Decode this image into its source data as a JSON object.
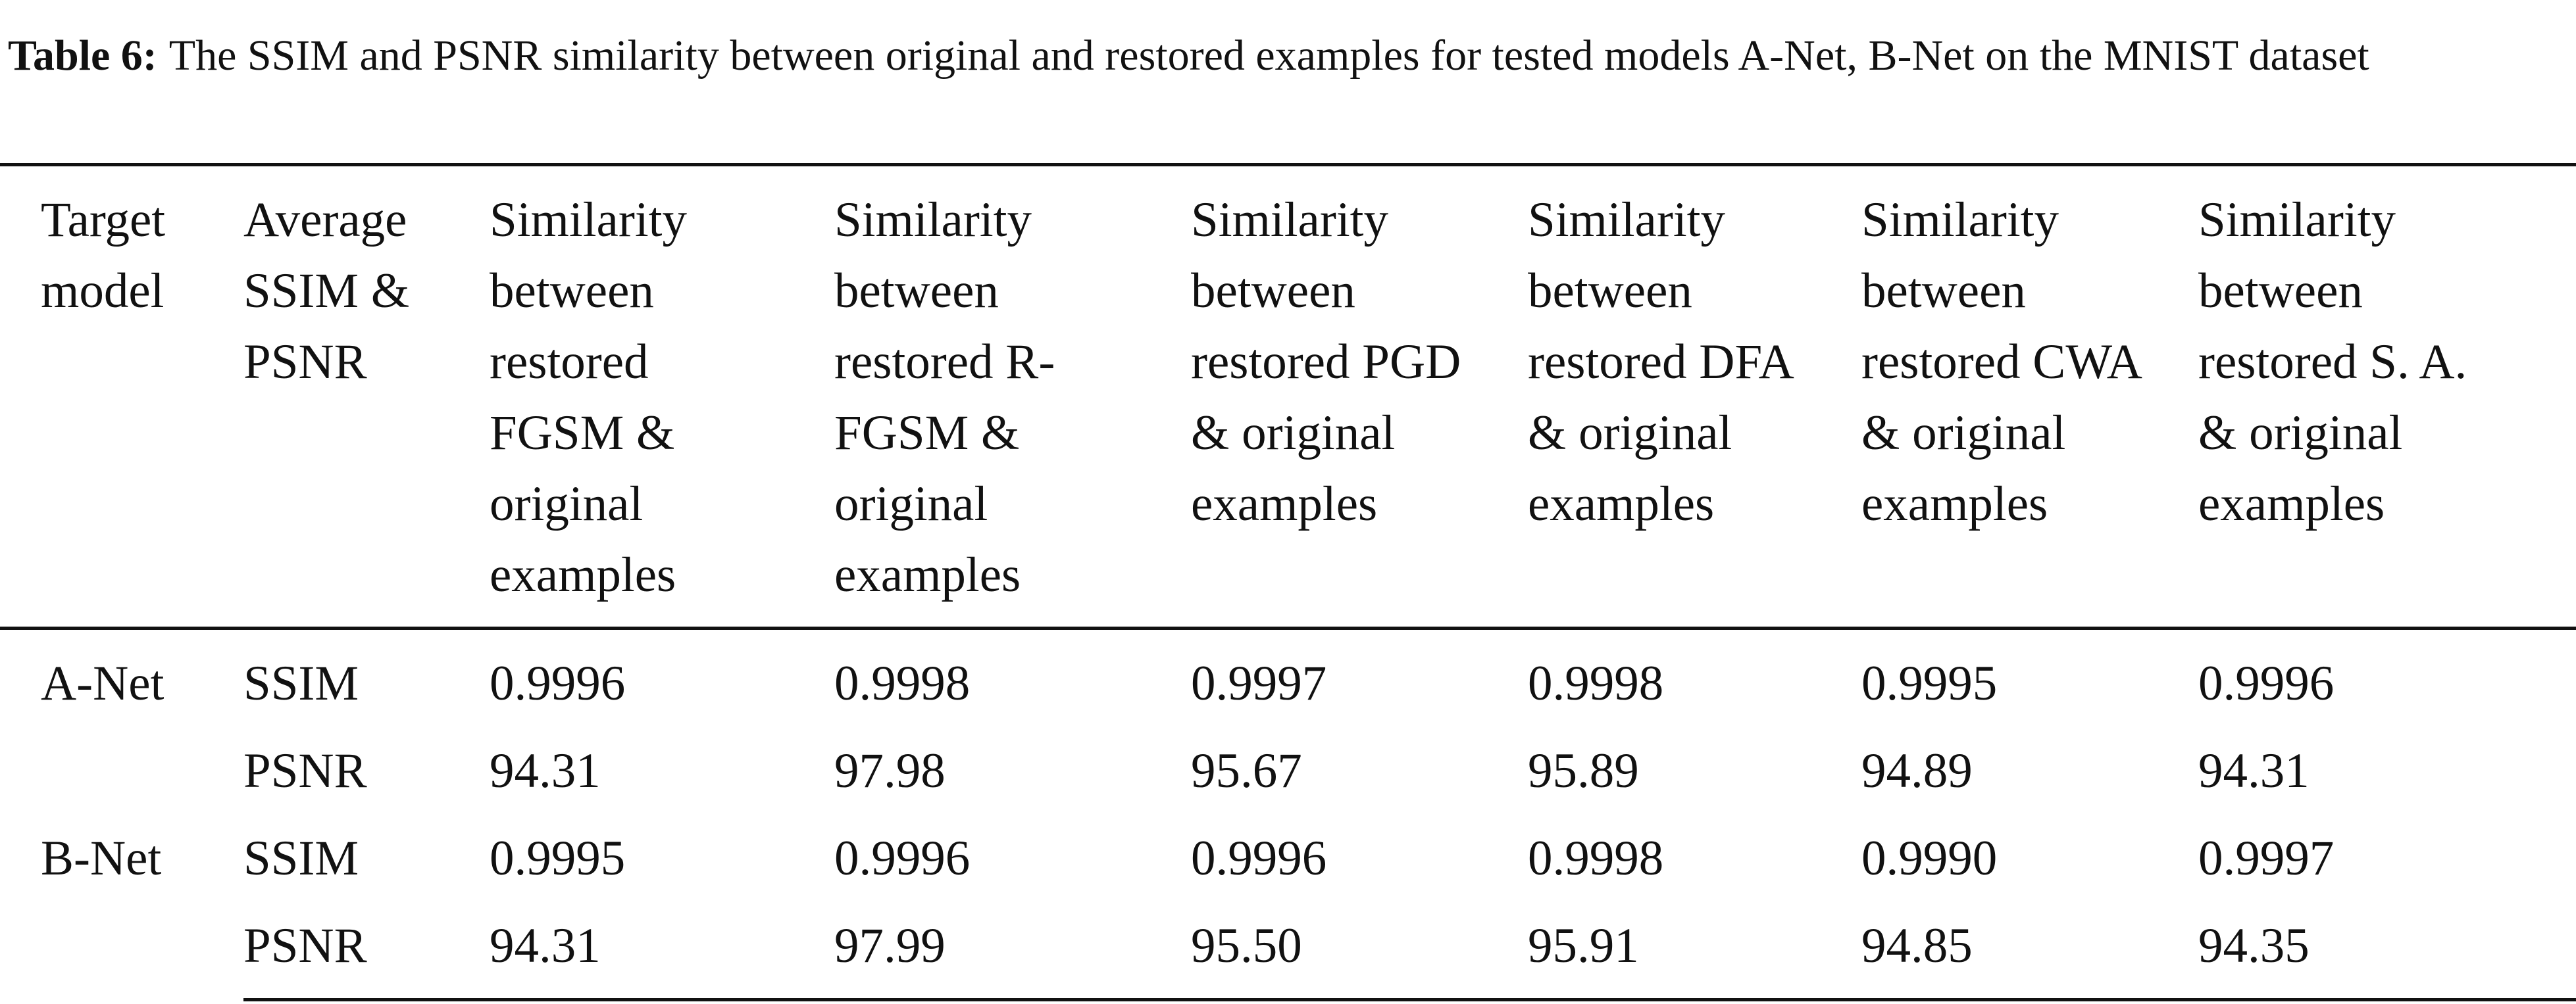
{
  "caption": {
    "label": "Table 6:",
    "text": "The SSIM and PSNR similarity between original and restored examples for tested models A-Net, B-Net on the MNIST dataset"
  },
  "table": {
    "columns": [
      "Target model",
      "Average SSIM & PSNR",
      "Similarity between restored FGSM & original examples",
      "Similarity between restored R-FGSM & original examples",
      "Similarity between restored PGD & original examples",
      "Similarity between restored DFA & original examples",
      "Similarity between restored CWA & original examples",
      "Similarity between restored S. A. & original examples"
    ],
    "groups": [
      {
        "model": "A-Net",
        "rows": [
          {
            "metric": "SSIM",
            "values": [
              "0.9996",
              "0.9998",
              "0.9997",
              "0.9998",
              "0.9995",
              "0.9996"
            ]
          },
          {
            "metric": "PSNR",
            "values": [
              "94.31",
              "97.98",
              "95.67",
              "95.89",
              "94.89",
              "94.31"
            ]
          }
        ]
      },
      {
        "model": "B-Net",
        "rows": [
          {
            "metric": "SSIM",
            "values": [
              "0.9995",
              "0.9996",
              "0.9996",
              "0.9998",
              "0.9990",
              "0.9997"
            ]
          },
          {
            "metric": "PSNR",
            "values": [
              "94.31",
              "97.99",
              "95.50",
              "95.91",
              "94.85",
              "94.35"
            ]
          }
        ]
      }
    ]
  }
}
